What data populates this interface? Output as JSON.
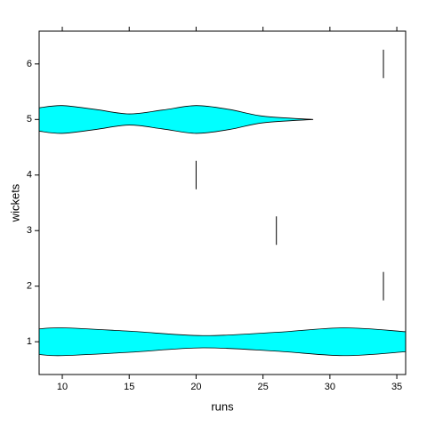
{
  "chart_data": {
    "type": "violin",
    "xlabel": "runs",
    "ylabel": "wickets",
    "xlim": [
      8.27,
      35.66
    ],
    "xticks": [
      10,
      15,
      20,
      25,
      30,
      35
    ],
    "ylim": [
      0.41,
      6.59
    ],
    "yticks": [
      1,
      2,
      3,
      4,
      5,
      6
    ],
    "color": "#00ffff",
    "violins": [
      {
        "y": 1,
        "x": [
          8.27,
          10,
          15,
          20.5,
          26,
          31,
          35.66
        ],
        "width": [
          0.23,
          0.25,
          0.19,
          0.11,
          0.17,
          0.25,
          0.18
        ]
      },
      {
        "y": 5,
        "x": [
          8.27,
          10,
          12.5,
          15,
          17.5,
          20,
          22.5,
          25,
          28.75
        ],
        "width": [
          0.21,
          0.25,
          0.18,
          0.1,
          0.17,
          0.25,
          0.18,
          0.06,
          0
        ]
      }
    ],
    "points": [
      {
        "y": 2,
        "x": 34
      },
      {
        "y": 3,
        "x": 26
      },
      {
        "y": 4,
        "x": 20
      },
      {
        "y": 6,
        "x": 34
      }
    ]
  }
}
